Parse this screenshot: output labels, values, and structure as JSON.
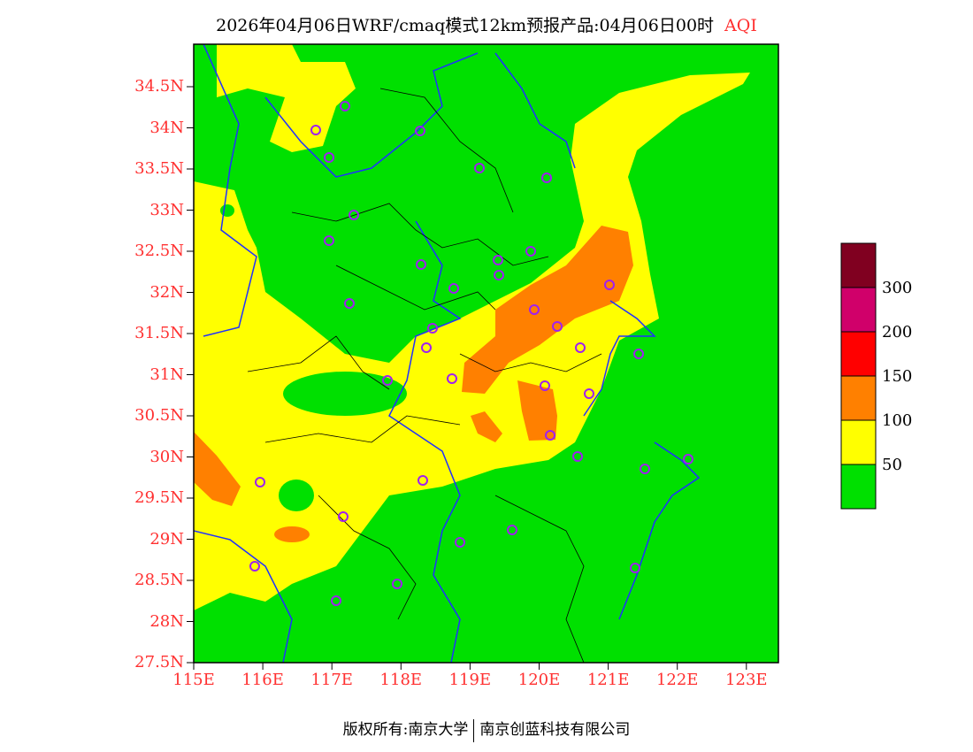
{
  "title": {
    "text": "2026年04月06日WRF/cmaq模式12km预报产品:04月06日00时",
    "variable": "AQI"
  },
  "lat_labels": [
    "34.5N",
    "34N",
    "33.5N",
    "33N",
    "32.5N",
    "32N",
    "31.5N",
    "31N",
    "30.5N",
    "30N",
    "29.5N",
    "29N",
    "28.5N",
    "28N",
    "27.5N"
  ],
  "lon_labels": [
    "115E",
    "116E",
    "117E",
    "118E",
    "119E",
    "120E",
    "121E",
    "122E",
    "123E"
  ],
  "legend": {
    "labels": [
      "300",
      "200",
      "150",
      "100",
      "50"
    ],
    "colors": [
      "#800020",
      "#d0006a",
      "#ff0000",
      "#ff8000",
      "#ffff00",
      "#00e000"
    ]
  },
  "footer": {
    "left": "版权所有:南京大学",
    "right": "南京创蓝科技有限公司"
  }
}
